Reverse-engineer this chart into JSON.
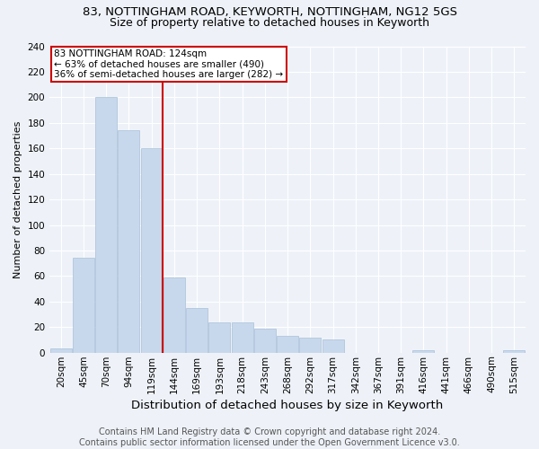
{
  "title": "83, NOTTINGHAM ROAD, KEYWORTH, NOTTINGHAM, NG12 5GS",
  "subtitle": "Size of property relative to detached houses in Keyworth",
  "xlabel": "Distribution of detached houses by size in Keyworth",
  "ylabel": "Number of detached properties",
  "bar_labels": [
    "20sqm",
    "45sqm",
    "70sqm",
    "94sqm",
    "119sqm",
    "144sqm",
    "169sqm",
    "193sqm",
    "218sqm",
    "243sqm",
    "268sqm",
    "292sqm",
    "317sqm",
    "342sqm",
    "367sqm",
    "391sqm",
    "416sqm",
    "441sqm",
    "466sqm",
    "490sqm",
    "515sqm"
  ],
  "bar_values": [
    3,
    74,
    200,
    174,
    160,
    59,
    35,
    24,
    24,
    19,
    13,
    12,
    10,
    0,
    0,
    0,
    2,
    0,
    0,
    0,
    2
  ],
  "bar_color": "#c8d8ec",
  "bar_edgecolor": "#a8c0d8",
  "vline_x": 4.5,
  "property_line_label": "83 NOTTINGHAM ROAD: 124sqm",
  "annotation_line1": "← 63% of detached houses are smaller (490)",
  "annotation_line2": "36% of semi-detached houses are larger (282) →",
  "annotation_box_color": "#ffffff",
  "annotation_box_edgecolor": "#cc0000",
  "vline_color": "#cc0000",
  "ylim": [
    0,
    240
  ],
  "yticks": [
    0,
    20,
    40,
    60,
    80,
    100,
    120,
    140,
    160,
    180,
    200,
    220,
    240
  ],
  "background_color": "#eef2f8",
  "grid_color": "#ffffff",
  "footer_line1": "Contains HM Land Registry data © Crown copyright and database right 2024.",
  "footer_line2": "Contains public sector information licensed under the Open Government Licence v3.0.",
  "title_fontsize": 9.5,
  "subtitle_fontsize": 9,
  "xlabel_fontsize": 9.5,
  "ylabel_fontsize": 8,
  "tick_fontsize": 7.5,
  "footer_fontsize": 7,
  "annotation_fontsize": 7.5
}
